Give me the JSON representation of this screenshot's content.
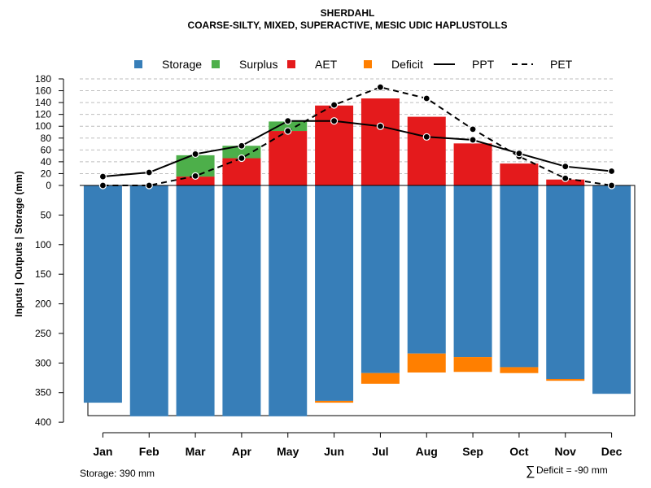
{
  "chart_data": {
    "type": "bar",
    "title": "SHERDAHL",
    "subtitle": "COARSE-SILTY, MIXED, SUPERACTIVE, MESIC UDIC HAPLUSTOLLS",
    "ylabel": "Inputs | Outputs | Storage     (mm)",
    "categories": [
      "Jan",
      "Feb",
      "Mar",
      "Apr",
      "May",
      "Jun",
      "Jul",
      "Aug",
      "Sep",
      "Oct",
      "Nov",
      "Dec"
    ],
    "legend": [
      {
        "key": "storage",
        "label": "Storage",
        "kind": "square",
        "color": "#377EB8"
      },
      {
        "key": "surplus",
        "label": "Surplus",
        "kind": "square",
        "color": "#4DAF4A"
      },
      {
        "key": "aet",
        "label": "AET",
        "kind": "square",
        "color": "#E41A1C"
      },
      {
        "key": "deficit",
        "label": "Deficit",
        "kind": "square",
        "color": "#FF7F00"
      },
      {
        "key": "ppt",
        "label": "PPT",
        "kind": "solid-line",
        "color": "#000000"
      },
      {
        "key": "pet",
        "label": "PET",
        "kind": "dashed-line",
        "color": "#000000"
      }
    ],
    "upper_ticks": [
      0,
      20,
      40,
      60,
      80,
      100,
      120,
      140,
      160,
      180
    ],
    "lower_ticks": [
      50,
      100,
      150,
      200,
      250,
      300,
      350,
      400
    ],
    "upper_ylim": [
      0,
      180
    ],
    "lower_ylim": [
      0,
      400
    ],
    "series": {
      "aet": [
        0,
        0,
        15,
        46,
        92,
        135,
        147,
        116,
        71,
        37,
        10,
        0
      ],
      "surplus": [
        0,
        0,
        36,
        21,
        16,
        0,
        0,
        0,
        0,
        0,
        0,
        0
      ],
      "storage": [
        367,
        390,
        390,
        390,
        390,
        364,
        317,
        284,
        290,
        307,
        327,
        352
      ],
      "deficit": [
        0,
        0,
        0,
        0,
        0,
        3,
        18,
        32,
        25,
        10,
        3,
        0
      ],
      "ppt": [
        15,
        22,
        53,
        67,
        109,
        109,
        100,
        82,
        77,
        54,
        32,
        24
      ],
      "pet": [
        0,
        0,
        16,
        46,
        92,
        136,
        166,
        147,
        95,
        49,
        12,
        0
      ]
    },
    "colors": {
      "storage": "#377EB8",
      "surplus": "#4DAF4A",
      "aet": "#E41A1C",
      "deficit": "#FF7F00",
      "line": "#000000",
      "grid": "#BEBEBE"
    }
  },
  "footer": {
    "storage_text": "Storage: 390 mm",
    "deficit_symbol": "∑",
    "deficit_text": "Deficit = -90 mm"
  }
}
